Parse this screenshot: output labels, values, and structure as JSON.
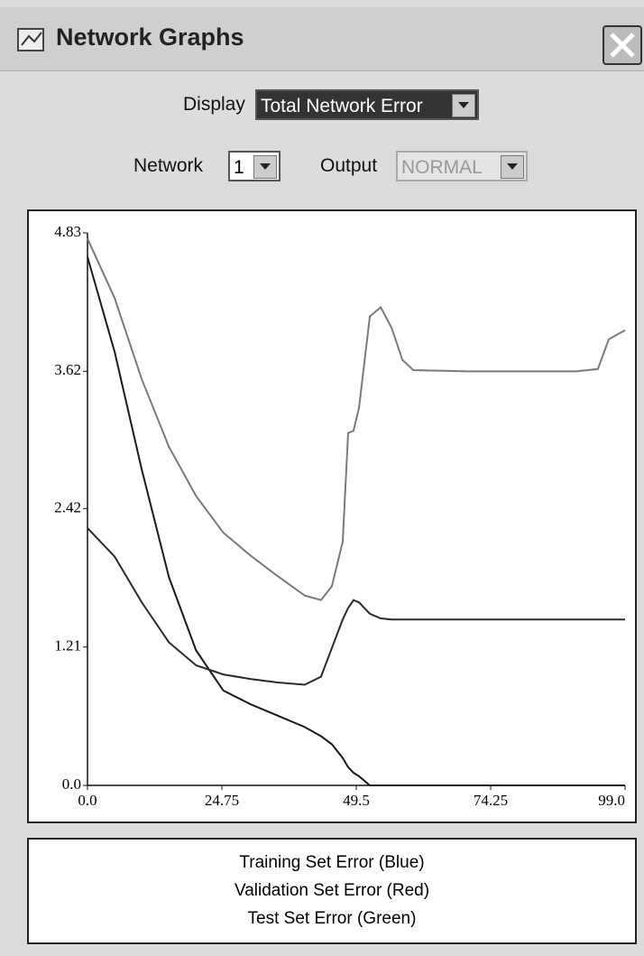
{
  "window": {
    "title": "Network Graphs"
  },
  "controls": {
    "display_label": "Display",
    "display_value": "Total Network Error",
    "network_label": "Network",
    "network_value": "1",
    "output_label": "Output",
    "output_value": "NORMAL"
  },
  "chart_data": {
    "type": "line",
    "x": [
      0,
      5,
      10,
      15,
      20,
      25,
      30,
      35,
      40,
      43,
      45,
      47,
      48,
      49,
      50,
      52,
      54,
      56,
      58,
      60,
      70,
      80,
      90,
      94,
      96,
      99
    ],
    "series": [
      {
        "name": "Training Set Error (Blue)",
        "color": "#1a1a1a",
        "values": [
          4.62,
          3.79,
          2.76,
          1.82,
          1.18,
          0.83,
          0.71,
          0.61,
          0.51,
          0.43,
          0.36,
          0.24,
          0.16,
          0.11,
          0.08,
          0,
          0,
          0,
          0,
          0,
          0,
          0,
          0,
          0,
          0,
          0
        ]
      },
      {
        "name": "Validation Set Error (Red)",
        "color": "#7a7a7a",
        "values": [
          4.78,
          4.26,
          3.55,
          2.96,
          2.53,
          2.21,
          2.01,
          1.83,
          1.66,
          1.62,
          1.74,
          2.13,
          3.08,
          3.1,
          3.3,
          4.1,
          4.18,
          4.0,
          3.72,
          3.63,
          3.62,
          3.62,
          3.62,
          3.64,
          3.9,
          3.98
        ]
      },
      {
        "name": "Test Set Error (Green)",
        "color": "#2a2a2a",
        "values": [
          2.25,
          2.0,
          1.6,
          1.25,
          1.05,
          0.97,
          0.93,
          0.9,
          0.88,
          0.95,
          1.2,
          1.45,
          1.55,
          1.62,
          1.6,
          1.5,
          1.46,
          1.45,
          1.45,
          1.45,
          1.45,
          1.45,
          1.45,
          1.45,
          1.45,
          1.45
        ]
      }
    ],
    "xlim": [
      0,
      99
    ],
    "xticks": [
      {
        "value": 0,
        "label": "0.0"
      },
      24.75,
      49.5,
      74.25,
      {
        "value": 99,
        "label": "99.0"
      }
    ],
    "ylim": [
      0,
      4.83
    ],
    "yticks": [
      {
        "value": 0,
        "label": "0.0"
      },
      1.21,
      2.42,
      3.62,
      4.83
    ]
  }
}
